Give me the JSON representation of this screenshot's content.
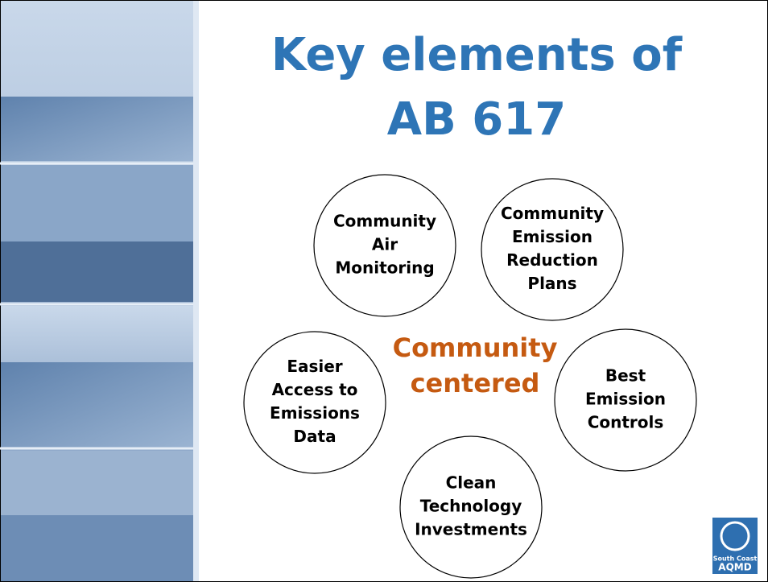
{
  "title": {
    "lines": [
      "Key elements of",
      "AB 617"
    ]
  },
  "center": {
    "lines": [
      "Community",
      "centered"
    ]
  },
  "nodes": [
    {
      "lines": [
        "Community",
        "Air",
        "Monitoring"
      ]
    },
    {
      "lines": [
        "Community",
        "Emission",
        "Reduction",
        "Plans"
      ]
    },
    {
      "lines": [
        "Easier",
        "Access to",
        "Emissions",
        "Data"
      ]
    },
    {
      "lines": [
        "Best",
        "Emission",
        "Controls"
      ]
    },
    {
      "lines": [
        "Clean",
        "Technology",
        "Investments"
      ]
    }
  ],
  "logo": {
    "lines": [
      "South Coast",
      "AQMD"
    ]
  }
}
